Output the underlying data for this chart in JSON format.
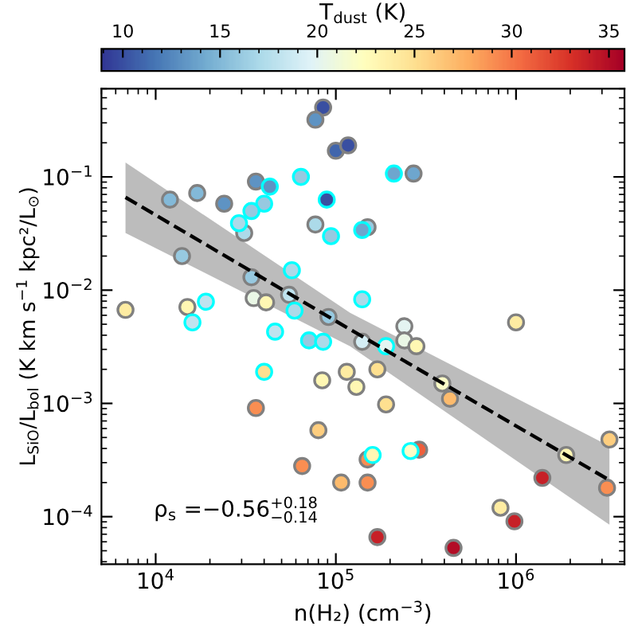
{
  "chart_data": {
    "type": "scatter",
    "xlabel": "n(H₂) (cm$^{−3}$)",
    "ylabel": "L$_{SiO}$/L$_{bol}$ (K km s$^{−1}$ kpc²/L$_{⊙}$)",
    "clabel": "T$_{dust}$ (K)",
    "log": "xy",
    "grid": false,
    "xlim": [
      5000,
      4000000
    ],
    "xticks": [
      {
        "value": 10000,
        "label": "10$^{4}$"
      },
      {
        "value": 100000,
        "label": "10$^{5}$"
      },
      {
        "value": 1000000,
        "label": "10$^{6}$"
      }
    ],
    "ylim": [
      3.8e-05,
      0.6
    ],
    "yticks": [
      {
        "value": 0.0001,
        "label": "10$^{−4}$"
      },
      {
        "value": 0.001,
        "label": "10$^{−3}$"
      },
      {
        "value": 0.01,
        "label": "10$^{−2}$"
      },
      {
        "value": 0.1,
        "label": "10$^{−1}$"
      }
    ],
    "clim": [
      8.9,
      35.8
    ],
    "cticks": [
      10,
      15,
      20,
      25,
      30,
      35
    ],
    "annotations": [
      "ρ$_{s}$ =−0.56$^{+0.18}$$_{−0.14}$"
    ],
    "series": [
      {
        "type": "line",
        "color": "#000000",
        "line_style": "dashed",
        "marker": "none",
        "x": [
          6800,
          120000,
          3300000
        ],
        "values": [
          0.066,
          0.0045,
          0.00021
        ],
        "lower": [
          0.032,
          0.0032,
          8.5e-05
        ],
        "upper": [
          0.134,
          0.0063,
          0.00042
        ]
      },
      {
        "color": "#808080",
        "marker": "circle",
        "x": [
          6800,
          12000,
          17000,
          24000,
          14000,
          36000,
          31000,
          85000,
          77000,
          100000,
          117000,
          77000,
          150000,
          34000,
          55000,
          35000,
          41000,
          15000,
          91000,
          140000,
          270000,
          1000000,
          240000,
          240000,
          280000,
          170000,
          130000,
          190000,
          390000,
          430000,
          1900000,
          3300000,
          3200000,
          1400000,
          820000,
          980000,
          450000,
          170000,
          150000,
          290000,
          150000,
          36000,
          84000,
          115000,
          80000,
          65000,
          107000
        ],
        "values": [
          0.0067,
          0.063,
          0.072,
          0.058,
          0.02,
          0.091,
          0.032,
          0.41,
          0.32,
          0.17,
          0.19,
          0.038,
          0.036,
          0.013,
          0.0091,
          0.0085,
          0.0078,
          0.0071,
          0.0058,
          0.0035,
          0.107,
          0.0052,
          0.0048,
          0.0036,
          0.0032,
          0.002,
          0.0014,
          0.00098,
          0.0015,
          0.0011,
          0.00035,
          0.00048,
          0.00018,
          0.00022,
          0.00012,
          9.1e-05,
          5.3e-05,
          6.6e-05,
          0.00032,
          0.00039,
          0.0002,
          0.00091,
          0.0016,
          0.0019,
          0.00058,
          0.00028,
          0.0002
        ],
        "cvalues": [
          24,
          15,
          15,
          13,
          16,
          13,
          17,
          10,
          13,
          11,
          10,
          17,
          16,
          16,
          18,
          20.5,
          23,
          23,
          16,
          19,
          14,
          24,
          20,
          20.5,
          23,
          25,
          23,
          25,
          22,
          27,
          23,
          26,
          29,
          34,
          24,
          34,
          35,
          34,
          29,
          31,
          29,
          29,
          23,
          24,
          26,
          29,
          27
        ]
      },
      {
        "color": "#00ffff",
        "marker": "circle",
        "x": [
          43000,
          40000,
          34000,
          29000,
          64000,
          89000,
          94000,
          140000,
          57000,
          59000,
          19000,
          16000,
          46000,
          71000,
          85000,
          140000,
          210000,
          190000,
          160000,
          260000,
          40000
        ],
        "values": [
          0.082,
          0.058,
          0.05,
          0.039,
          0.1,
          0.063,
          0.03,
          0.034,
          0.015,
          0.0066,
          0.0079,
          0.0052,
          0.0043,
          0.0036,
          0.0035,
          0.0083,
          0.107,
          0.0032,
          0.00035,
          0.00038,
          0.0019
        ],
        "cvalues": [
          13,
          16,
          16,
          17,
          16,
          10,
          16,
          14,
          17,
          17,
          18,
          18,
          18,
          16,
          17,
          17,
          14,
          20,
          23,
          22,
          25
        ]
      }
    ]
  }
}
